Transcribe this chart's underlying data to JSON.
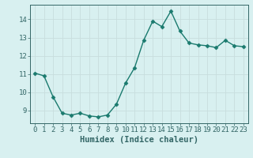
{
  "x": [
    0,
    1,
    2,
    3,
    4,
    5,
    6,
    7,
    8,
    9,
    10,
    11,
    12,
    13,
    14,
    15,
    16,
    17,
    18,
    19,
    20,
    21,
    22,
    23
  ],
  "y": [
    11.05,
    10.9,
    9.75,
    8.85,
    8.75,
    8.85,
    8.7,
    8.65,
    8.75,
    9.35,
    10.5,
    11.35,
    12.85,
    13.9,
    13.6,
    14.45,
    13.35,
    12.7,
    12.6,
    12.55,
    12.45,
    12.85,
    12.55,
    12.5
  ],
  "line_color": "#1a7a6e",
  "marker": "D",
  "markersize": 2.5,
  "linewidth": 1.0,
  "bg_color": "#d8f0f0",
  "grid_color": "#c8dede",
  "grid_color_minor": "#dce8e8",
  "axis_color": "#336666",
  "xlabel": "Humidex (Indice chaleur)",
  "xlim": [
    -0.5,
    23.5
  ],
  "ylim": [
    8.3,
    14.8
  ],
  "yticks": [
    9,
    10,
    11,
    12,
    13,
    14
  ],
  "xticks": [
    0,
    1,
    2,
    3,
    4,
    5,
    6,
    7,
    8,
    9,
    10,
    11,
    12,
    13,
    14,
    15,
    16,
    17,
    18,
    19,
    20,
    21,
    22,
    23
  ],
  "xlabel_fontsize": 7.5,
  "tick_fontsize": 6.5
}
